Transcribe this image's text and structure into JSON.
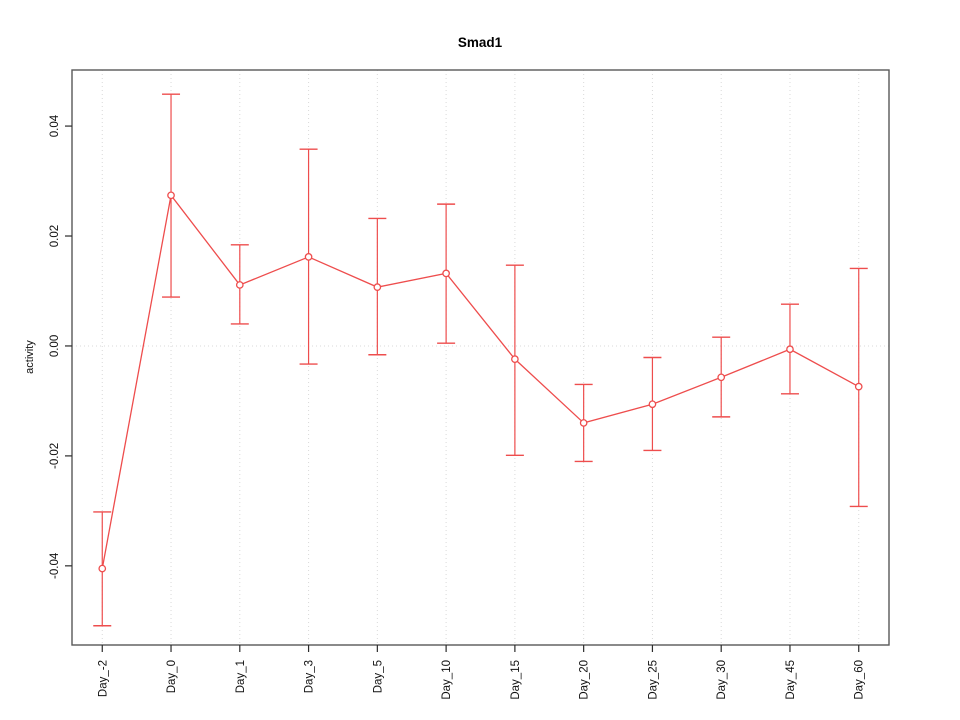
{
  "chart_data": {
    "type": "line",
    "title": "Smad1",
    "ylabel": "activity",
    "xlabel": "",
    "categories": [
      "Day_-2",
      "Day_0",
      "Day_1",
      "Day_3",
      "Day_5",
      "Day_10",
      "Day_15",
      "Day_20",
      "Day_25",
      "Day_30",
      "Day_45",
      "Day_60"
    ],
    "series": [
      {
        "name": "Smad1",
        "values": [
          -0.0405,
          0.0274,
          0.0111,
          0.0162,
          0.0107,
          0.0132,
          -0.0024,
          -0.014,
          -0.0106,
          -0.0057,
          -0.0006,
          -0.0074
        ],
        "error_upper": [
          -0.0302,
          0.0458,
          0.0184,
          0.0358,
          0.0232,
          0.0258,
          0.0147,
          -0.007,
          -0.0021,
          0.0016,
          0.0076,
          0.0141
        ],
        "error_lower": [
          -0.0509,
          0.0089,
          0.004,
          -0.0033,
          -0.0016,
          0.0005,
          -0.0199,
          -0.021,
          -0.019,
          -0.0129,
          -0.0087,
          -0.0292
        ]
      }
    ],
    "ylim": [
      -0.0544,
      0.0502
    ],
    "ytick_values": [
      -0.04,
      -0.02,
      0,
      0.02,
      0.04
    ],
    "ytick_labels": [
      "-0.04",
      "-0.02",
      "0.00",
      "0.02",
      "0.04"
    ],
    "legend": "none",
    "grid": {
      "vertical_gridlines": true,
      "zero_line": true,
      "style": "dotted"
    },
    "marker": "open-circle",
    "error_bars": true,
    "colors": {
      "series": "#ee4d4d",
      "gridline": "#d9d9d9",
      "frame": "#595959",
      "tick": "#2b2b2b",
      "text": "#111111",
      "background": "#ffffff"
    }
  }
}
